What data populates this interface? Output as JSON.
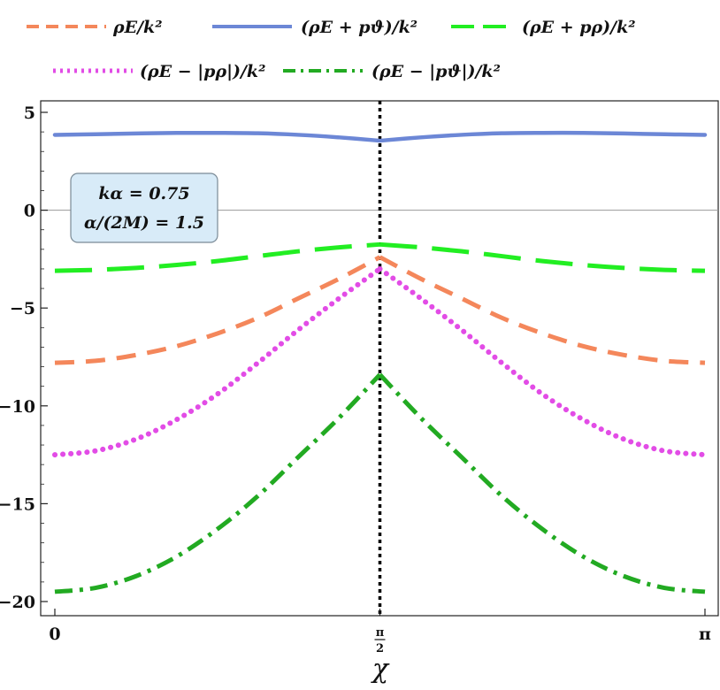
{
  "chart_data": {
    "type": "line",
    "title": "",
    "xlabel": "χ",
    "ylabel": "",
    "xlim": [
      0,
      3.14159
    ],
    "ylim": [
      -20.7,
      5.3
    ],
    "x_ticks": [
      {
        "value": 0,
        "label": "0"
      },
      {
        "value": 1.5708,
        "label": "π/2"
      },
      {
        "value": 3.14159,
        "label": "π"
      }
    ],
    "y_ticks": [
      {
        "value": 5,
        "label": "5"
      },
      {
        "value": 0,
        "label": "0"
      },
      {
        "value": -5,
        "label": "−5"
      },
      {
        "value": -10,
        "label": "−10"
      },
      {
        "value": -15,
        "label": "−15"
      },
      {
        "value": -20,
        "label": "−20"
      }
    ],
    "reference_lines": [
      {
        "orientation": "horizontal",
        "value": 0,
        "color": "#999999",
        "style": "solid"
      },
      {
        "orientation": "vertical",
        "value": 1.5708,
        "color": "#000000",
        "style": "dotted"
      }
    ],
    "annotation": {
      "lines": [
        "kα = 0.75",
        "α/(2M) = 1.5"
      ],
      "position": "upper-left"
    },
    "series": [
      {
        "name": "ρE/k²",
        "color": "#f4875b",
        "style": "dashed",
        "x": [
          0,
          0.19635,
          0.3927,
          0.58905,
          0.7854,
          0.98175,
          1.1781,
          1.37445,
          1.5708,
          1.76715,
          1.9635,
          2.15985,
          2.3562,
          2.55255,
          2.7489,
          2.94524,
          3.14159
        ],
        "y": [
          -7.8,
          -7.7,
          -7.4,
          -6.95,
          -6.3,
          -5.5,
          -4.5,
          -3.5,
          -2.4,
          -3.5,
          -4.5,
          -5.5,
          -6.3,
          -6.95,
          -7.4,
          -7.7,
          -7.8
        ]
      },
      {
        "name": "(ρE + pϑ)/k²",
        "color": "#6c87d6",
        "style": "solid",
        "x": [
          0,
          0.19635,
          0.3927,
          0.58905,
          0.7854,
          0.98175,
          1.1781,
          1.37445,
          1.5708,
          1.76715,
          1.9635,
          2.15985,
          2.3562,
          2.55255,
          2.7489,
          2.94524,
          3.14159
        ],
        "y": [
          3.85,
          3.88,
          3.92,
          3.95,
          3.95,
          3.93,
          3.85,
          3.72,
          3.55,
          3.72,
          3.85,
          3.93,
          3.95,
          3.95,
          3.92,
          3.88,
          3.85
        ]
      },
      {
        "name": "(ρE + pρ)/k²",
        "color": "#22ee22",
        "style": "longdash",
        "x": [
          0,
          0.19635,
          0.3927,
          0.58905,
          0.7854,
          0.98175,
          1.1781,
          1.37445,
          1.5708,
          1.76715,
          1.9635,
          2.15985,
          2.3562,
          2.55255,
          2.7489,
          2.94524,
          3.14159
        ],
        "y": [
          -3.1,
          -3.05,
          -2.95,
          -2.8,
          -2.6,
          -2.35,
          -2.1,
          -1.9,
          -1.75,
          -1.9,
          -2.1,
          -2.35,
          -2.6,
          -2.8,
          -2.95,
          -3.05,
          -3.1
        ]
      },
      {
        "name": "(ρE − |pρ|)/k²",
        "color": "#e24ce6",
        "style": "dotted",
        "x": [
          0,
          0.19635,
          0.3927,
          0.58905,
          0.7854,
          0.98175,
          1.1781,
          1.37445,
          1.5708,
          1.76715,
          1.9635,
          2.15985,
          2.3562,
          2.55255,
          2.7489,
          2.94524,
          3.14159
        ],
        "y": [
          -12.5,
          -12.3,
          -11.7,
          -10.7,
          -9.4,
          -7.8,
          -6.1,
          -4.5,
          -3.0,
          -4.5,
          -6.1,
          -7.8,
          -9.4,
          -10.7,
          -11.7,
          -12.3,
          -12.5
        ]
      },
      {
        "name": "(ρE − |pϑ|)/k²",
        "color": "#22aa22",
        "style": "dashdot",
        "x": [
          0,
          0.19635,
          0.3927,
          0.58905,
          0.7854,
          0.98175,
          1.1781,
          1.37445,
          1.5708,
          1.76715,
          1.9635,
          2.15985,
          2.3562,
          2.55255,
          2.7489,
          2.94524,
          3.14159
        ],
        "y": [
          -19.5,
          -19.3,
          -18.7,
          -17.7,
          -16.3,
          -14.6,
          -12.6,
          -10.6,
          -8.4,
          -10.6,
          -12.6,
          -14.6,
          -16.3,
          -17.7,
          -18.7,
          -19.3,
          -19.5
        ]
      }
    ]
  }
}
